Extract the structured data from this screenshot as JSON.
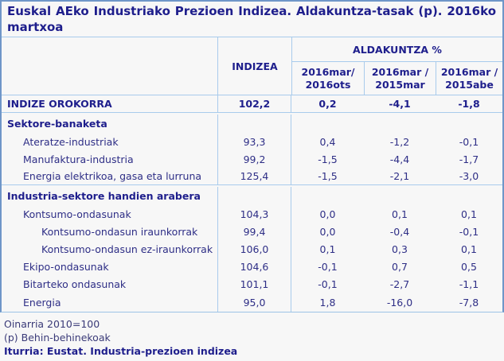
{
  "page": {
    "title": "Euskal AEko Industriako Prezioen Indizea. Aldakuntza-tasak (p). 2016ko martxoa"
  },
  "table": {
    "col_index_label": "INDIZEA",
    "col_group_label": "ALDAKUNTZA %",
    "period_columns": [
      "2016mar/\n2016ots",
      "2016mar /\n2015mar",
      "2016mar /\n2015abe"
    ],
    "rows": [
      {
        "label": "INDIZE OROKORRA",
        "level": 0,
        "bold": true,
        "rule_below": true,
        "values": [
          "102,2",
          "0,2",
          "-4,1",
          "-1,8"
        ]
      },
      {
        "label": "Sektore-banaketa",
        "level": 0,
        "bold": true,
        "section": true,
        "values": [
          "",
          "",
          "",
          ""
        ]
      },
      {
        "label": "Ateratze-industriak",
        "level": 1,
        "values": [
          "93,3",
          "0,4",
          "-1,2",
          "-0,1"
        ]
      },
      {
        "label": "Manufaktura-industria",
        "level": 1,
        "values": [
          "99,2",
          "-1,5",
          "-4,4",
          "-1,7"
        ]
      },
      {
        "label": "Energia elektrikoa, gasa eta lurruna",
        "level": 1,
        "rule_below": true,
        "values": [
          "125,4",
          "-1,5",
          "-2,1",
          "-3,0"
        ]
      },
      {
        "label": "Industria-sektore handien arabera",
        "level": 0,
        "bold": true,
        "section": true,
        "values": [
          "",
          "",
          "",
          ""
        ]
      },
      {
        "label": "Kontsumo-ondasunak",
        "level": 1,
        "values": [
          "104,3",
          "0,0",
          "0,1",
          "0,1"
        ]
      },
      {
        "label": "Kontsumo-ondasun iraunkorrak",
        "level": 2,
        "values": [
          "99,4",
          "0,0",
          "-0,4",
          "-0,1"
        ]
      },
      {
        "label": "Kontsumo-ondasun ez-iraunkorrak",
        "level": 2,
        "values": [
          "106,0",
          "0,1",
          "0,3",
          "0,1"
        ]
      },
      {
        "label": "Ekipo-ondasunak",
        "level": 1,
        "values": [
          "104,6",
          "-0,1",
          "0,7",
          "0,5"
        ]
      },
      {
        "label": "Bitarteko ondasunak",
        "level": 1,
        "values": [
          "101,1",
          "-0,1",
          "-2,7",
          "-1,1"
        ]
      },
      {
        "label": "Energia",
        "level": 1,
        "last": true,
        "values": [
          "95,0",
          "1,8",
          "-16,0",
          "-7,8"
        ]
      }
    ]
  },
  "footer": {
    "base_note": "Oinarria 2010=100",
    "provisional_note": "(p) Behin-behinekoak",
    "source": "Iturria: Eustat. Industria-prezioen indizea"
  },
  "colors": {
    "outer_border": "#6f96c8",
    "inner_rule": "#a8cbec",
    "heading_text": "#1e1e8c",
    "body_text": "#2e2e86",
    "background": "#f7f7f7"
  },
  "chart_data": {
    "type": "table",
    "title": "Euskal AEko Industriako Prezioen Indizea. Aldakuntza-tasak (p). 2016ko martxoa",
    "columns": [
      "INDIZEA",
      "ALDAKUNTZA % 2016mar/2016ots",
      "ALDAKUNTZA % 2016mar/2015mar",
      "ALDAKUNTZA % 2016mar/2015abe"
    ],
    "rows": [
      {
        "label": "INDIZE OROKORRA",
        "values": [
          102.2,
          0.2,
          -4.1,
          -1.8
        ]
      },
      {
        "label": "Sektore-banaketa",
        "values": [
          null,
          null,
          null,
          null
        ]
      },
      {
        "label": "Ateratze-industriak",
        "values": [
          93.3,
          0.4,
          -1.2,
          -0.1
        ]
      },
      {
        "label": "Manufaktura-industria",
        "values": [
          99.2,
          -1.5,
          -4.4,
          -1.7
        ]
      },
      {
        "label": "Energia elektrikoa, gasa eta lurruna",
        "values": [
          125.4,
          -1.5,
          -2.1,
          -3.0
        ]
      },
      {
        "label": "Industria-sektore handien arabera",
        "values": [
          null,
          null,
          null,
          null
        ]
      },
      {
        "label": "Kontsumo-ondasunak",
        "values": [
          104.3,
          0.0,
          0.1,
          0.1
        ]
      },
      {
        "label": "Kontsumo-ondasun iraunkorrak",
        "values": [
          99.4,
          0.0,
          -0.4,
          -0.1
        ]
      },
      {
        "label": "Kontsumo-ondasun ez-iraunkorrak",
        "values": [
          106.0,
          0.1,
          0.3,
          0.1
        ]
      },
      {
        "label": "Ekipo-ondasunak",
        "values": [
          104.6,
          -0.1,
          0.7,
          0.5
        ]
      },
      {
        "label": "Bitarteko ondasunak",
        "values": [
          101.1,
          -0.1,
          -2.7,
          -1.1
        ]
      },
      {
        "label": "Energia",
        "values": [
          95.0,
          1.8,
          -16.0,
          -7.8
        ]
      }
    ],
    "notes": [
      "Oinarria 2010=100",
      "(p) Behin-behinekoak"
    ],
    "source": "Iturria: Eustat. Industria-prezioen indizea"
  }
}
